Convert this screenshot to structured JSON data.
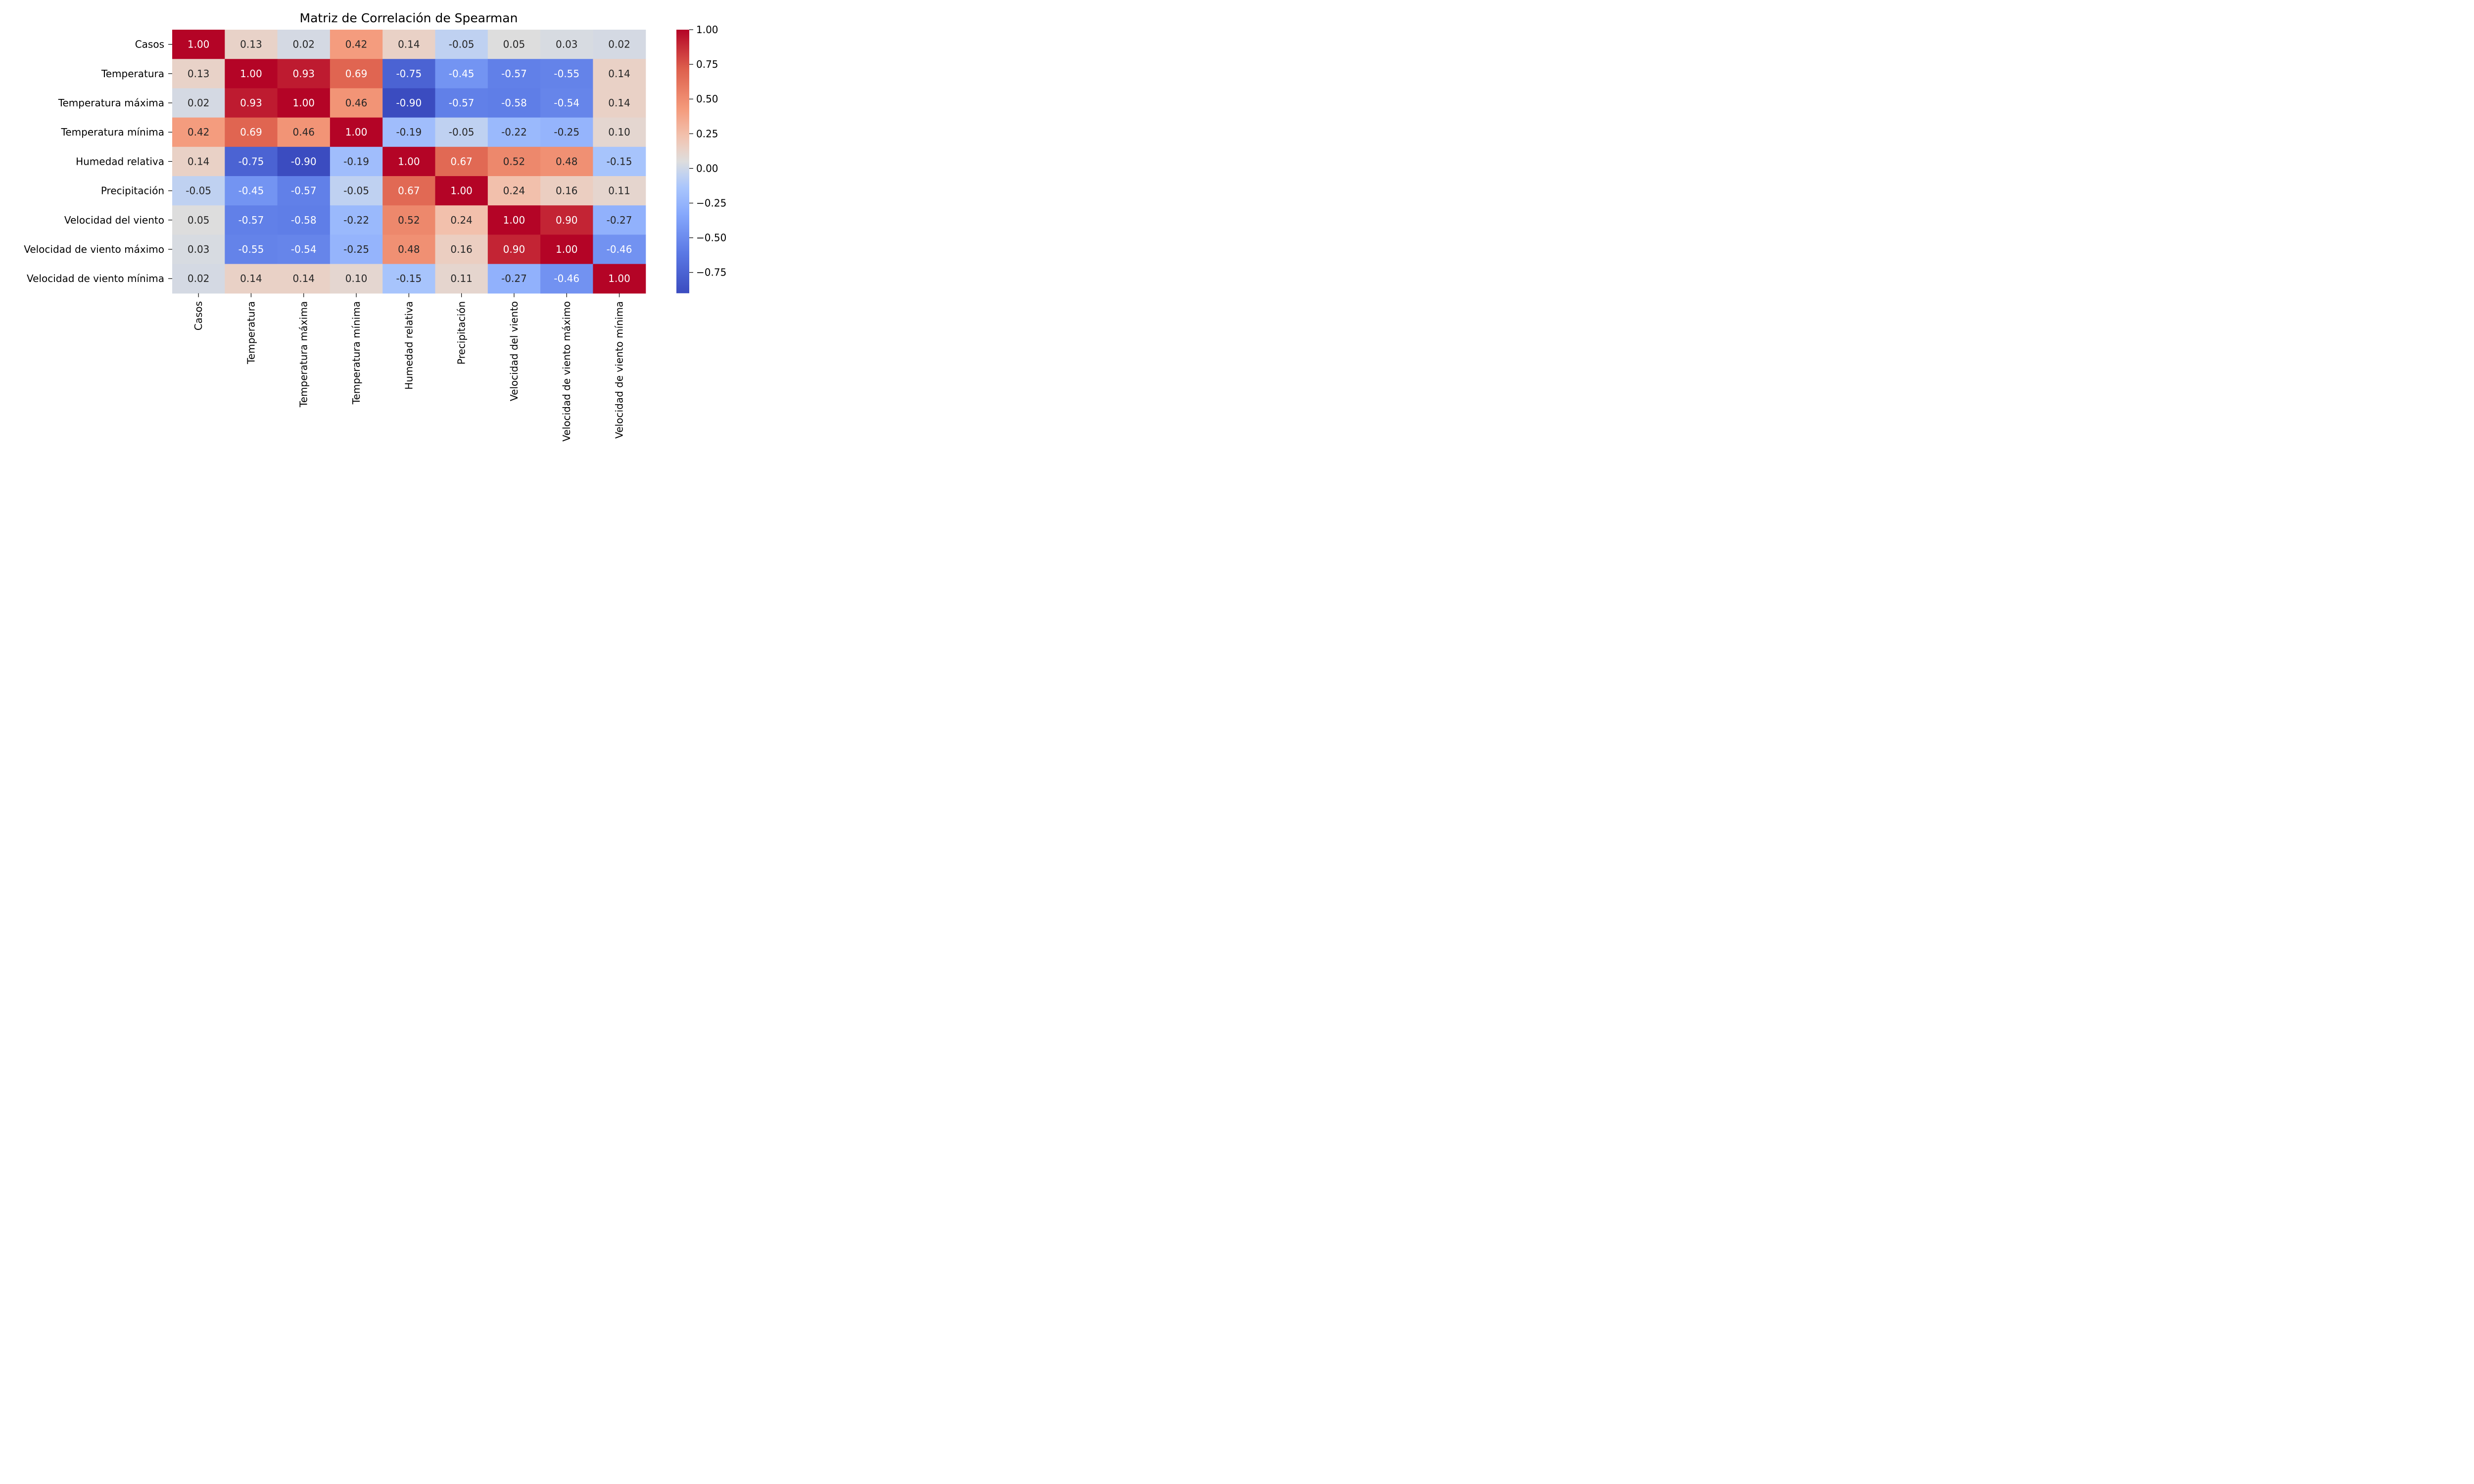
{
  "chart_data": {
    "type": "heatmap",
    "title": "Matriz de Correlación de Spearman",
    "row_labels": [
      "Casos",
      "Temperatura",
      "Temperatura máxima",
      "Temperatura mínima",
      "Humedad relativa",
      "Precipitación",
      "Velocidad del viento",
      "Velocidad de viento máximo",
      "Velocidad de viento mínima"
    ],
    "col_labels": [
      "Casos",
      "Temperatura",
      "Temperatura máxima",
      "Temperatura mínima",
      "Humedad relativa",
      "Precipitación",
      "Velocidad del viento",
      "Velocidad de viento máximo",
      "Velocidad de viento mínima"
    ],
    "values": [
      [
        1.0,
        0.13,
        0.02,
        0.42,
        0.14,
        -0.05,
        0.05,
        0.03,
        0.02
      ],
      [
        0.13,
        1.0,
        0.93,
        0.69,
        -0.75,
        -0.45,
        -0.57,
        -0.55,
        0.14
      ],
      [
        0.02,
        0.93,
        1.0,
        0.46,
        -0.9,
        -0.57,
        -0.58,
        -0.54,
        0.14
      ],
      [
        0.42,
        0.69,
        0.46,
        1.0,
        -0.19,
        -0.05,
        -0.22,
        -0.25,
        0.1
      ],
      [
        0.14,
        -0.75,
        -0.9,
        -0.19,
        1.0,
        0.67,
        0.52,
        0.48,
        -0.15
      ],
      [
        -0.05,
        -0.45,
        -0.57,
        -0.05,
        0.67,
        1.0,
        0.24,
        0.16,
        0.11
      ],
      [
        0.05,
        -0.57,
        -0.58,
        -0.22,
        0.52,
        0.24,
        1.0,
        0.9,
        -0.27
      ],
      [
        0.03,
        -0.55,
        -0.54,
        -0.25,
        0.48,
        0.16,
        0.9,
        1.0,
        -0.46
      ],
      [
        0.02,
        0.14,
        0.14,
        0.1,
        -0.15,
        0.11,
        -0.27,
        -0.46,
        1.0
      ]
    ],
    "value_format": "0.00",
    "colormap": "coolwarm",
    "colorbar": {
      "range": [
        -0.9,
        1.0
      ],
      "ticks": [
        1.0,
        0.75,
        0.5,
        0.25,
        0.0,
        -0.25,
        -0.5,
        -0.75
      ],
      "tick_labels": [
        "1.00",
        "0.75",
        "0.50",
        "0.25",
        "0.00",
        "−0.25",
        "−0.50",
        "−0.75"
      ]
    },
    "colors": {
      "low": "#3b4cc0",
      "mid": "#dddddd",
      "high": "#b40426"
    }
  }
}
